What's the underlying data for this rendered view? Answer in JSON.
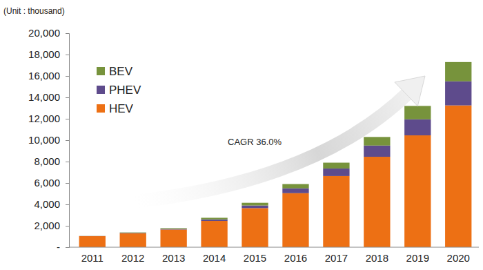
{
  "chart_data": {
    "type": "bar",
    "stacked": true,
    "legend": "upper left",
    "grid": false,
    "ylabel": "(Unit : thousand)",
    "annotations": [
      {
        "text": "CAGR 36.0%"
      }
    ],
    "categories": [
      "2011",
      "2012",
      "2013",
      "2014",
      "2015",
      "2016",
      "2017",
      "2018",
      "2019",
      "2020"
    ],
    "series": [
      {
        "name": "HEV",
        "color": "#ed7014",
        "values": [
          1030,
          1300,
          1650,
          2450,
          3650,
          5050,
          6650,
          8450,
          10450,
          13250
        ]
      },
      {
        "name": "PHEV",
        "color": "#5e4b8c",
        "values": [
          10,
          40,
          60,
          150,
          250,
          450,
          700,
          1050,
          1500,
          2250
        ]
      },
      {
        "name": "BEV",
        "color": "#77933c",
        "values": [
          10,
          40,
          70,
          150,
          250,
          400,
          550,
          800,
          1250,
          1800
        ]
      }
    ],
    "ylim": [
      0,
      20000
    ],
    "yticks": [
      {
        "value": 0,
        "label": "-"
      },
      {
        "value": 2000,
        "label": "2,000"
      },
      {
        "value": 4000,
        "label": "4,000"
      },
      {
        "value": 6000,
        "label": "6,000"
      },
      {
        "value": 8000,
        "label": "8,000"
      },
      {
        "value": 10000,
        "label": "10,000"
      },
      {
        "value": 12000,
        "label": "12,000"
      },
      {
        "value": 14000,
        "label": "14,000"
      },
      {
        "value": 16000,
        "label": "16,000"
      },
      {
        "value": 18000,
        "label": "18,000"
      },
      {
        "value": 20000,
        "label": "20,000"
      }
    ]
  }
}
